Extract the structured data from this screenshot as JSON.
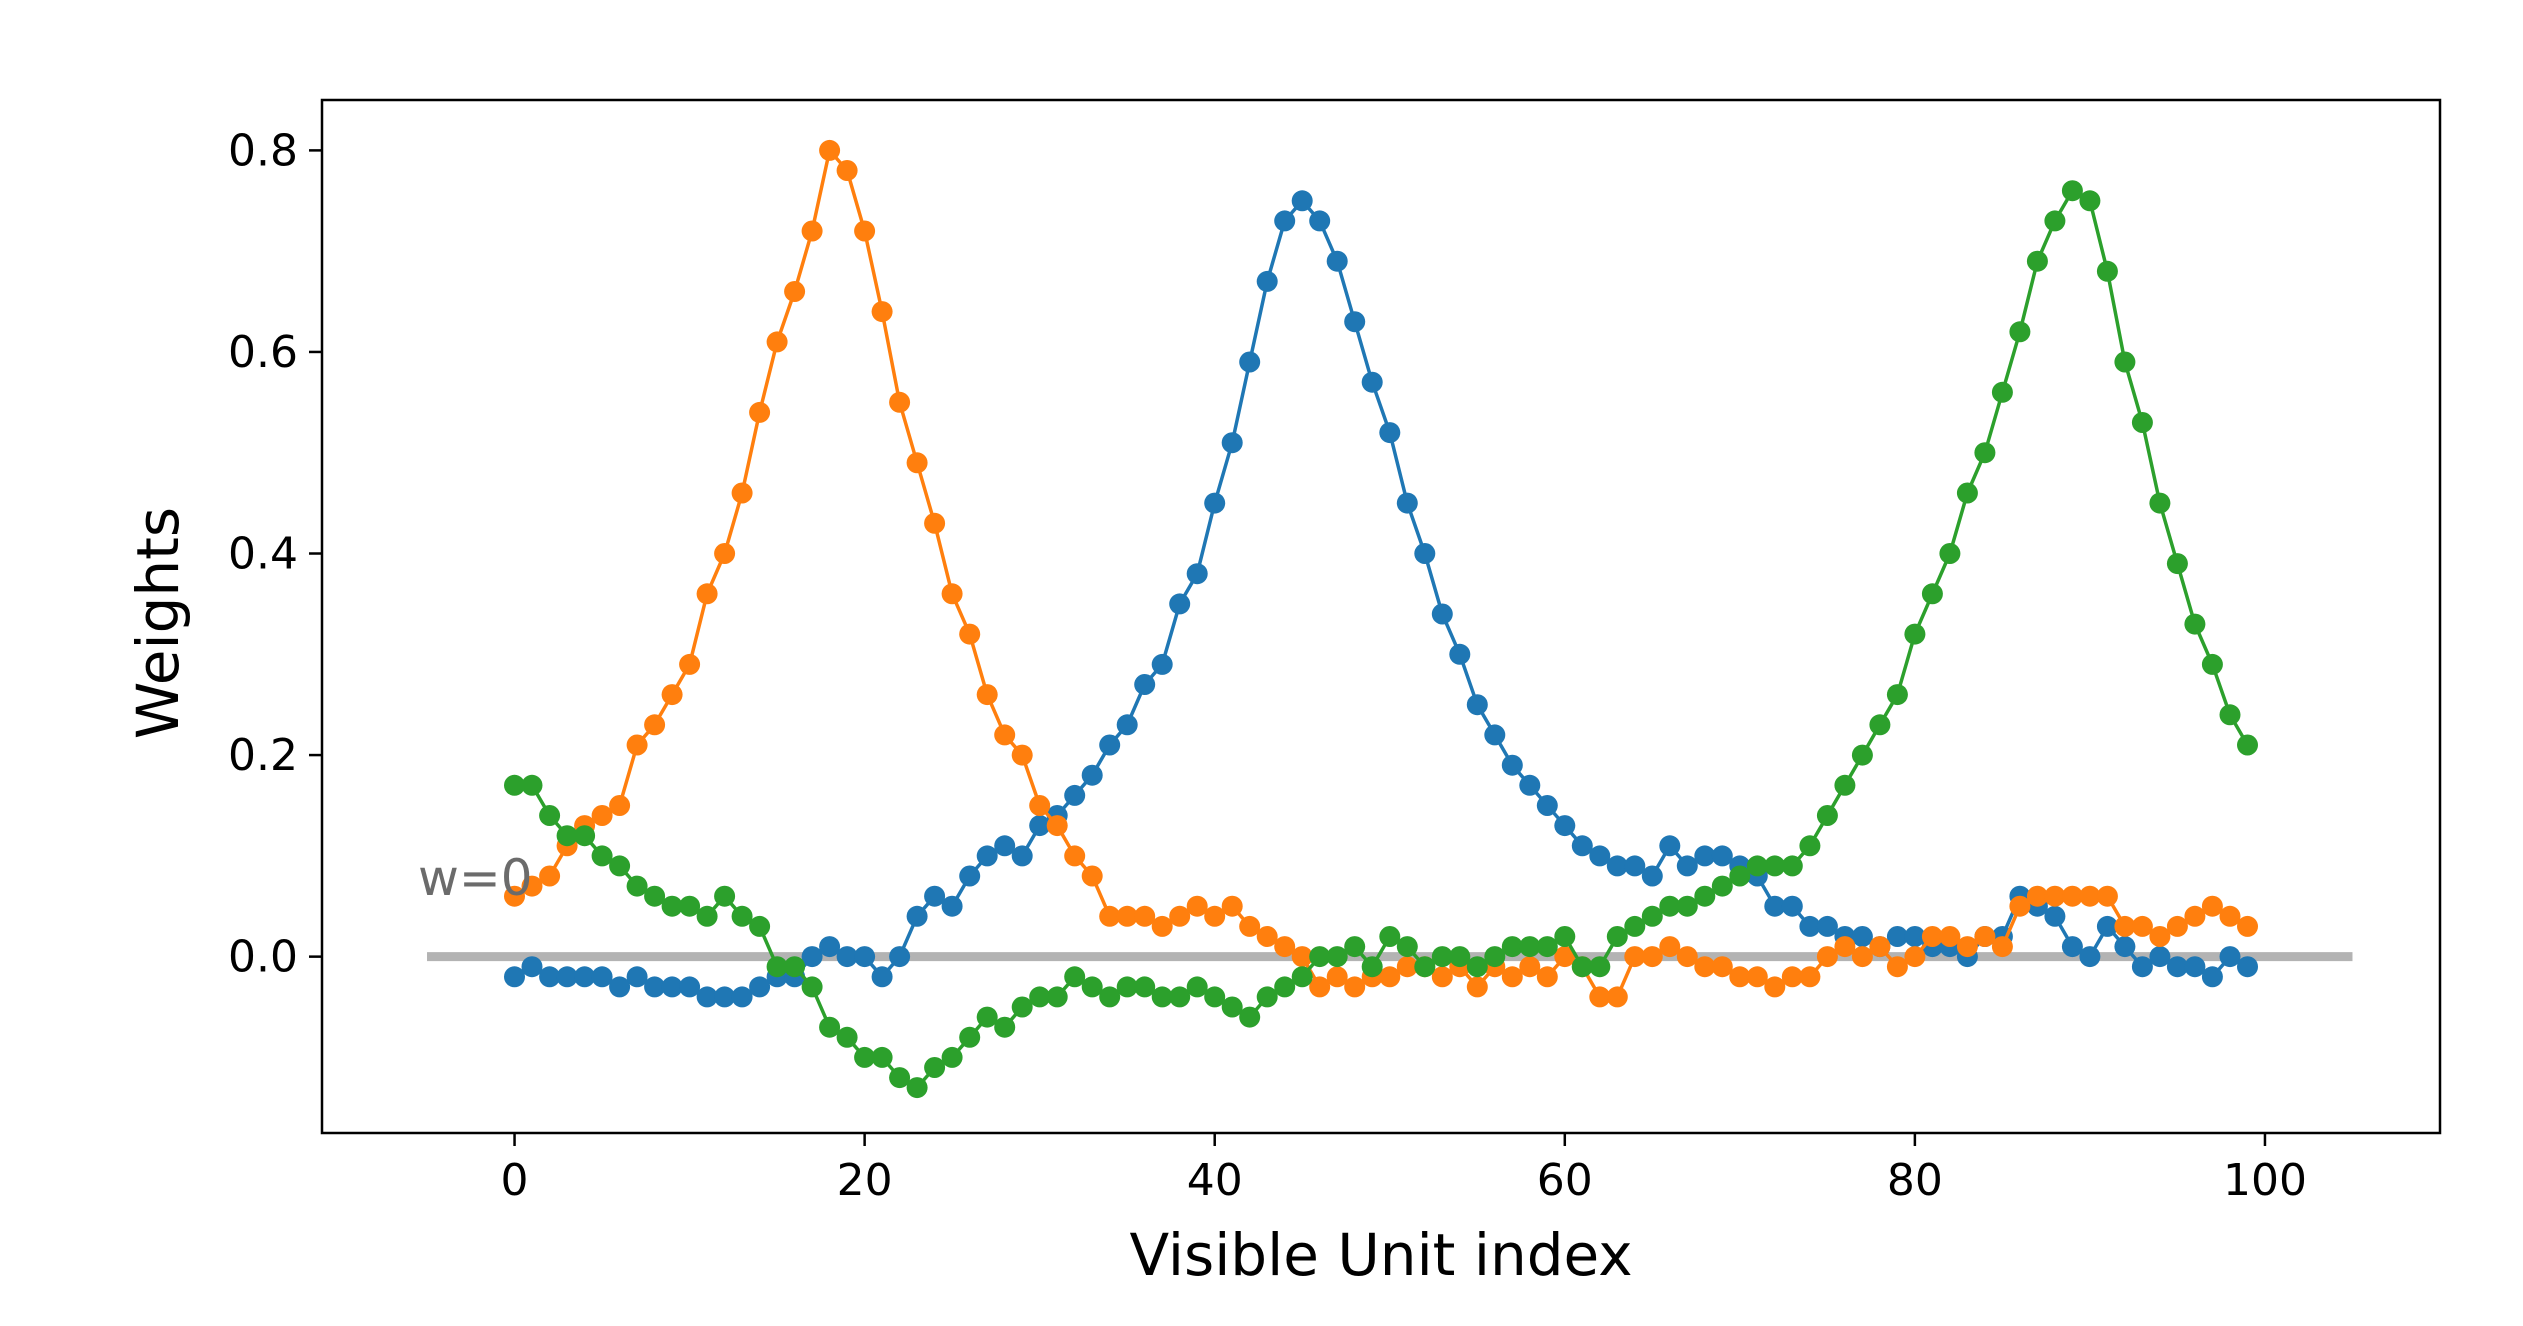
{
  "chart_data": {
    "type": "line",
    "title": "",
    "xlabel": "Visible Unit index",
    "ylabel": "Weights",
    "xlim": [
      -11,
      110
    ],
    "ylim": [
      -0.175,
      0.85
    ],
    "xticks": [
      0,
      20,
      40,
      60,
      80,
      100
    ],
    "yticks": [
      0.0,
      0.2,
      0.4,
      0.6,
      0.8
    ],
    "ytick_labels": [
      "0.0",
      "0.2",
      "0.4",
      "0.6",
      "0.8"
    ],
    "grid": false,
    "legend": "none",
    "reference_line": {
      "y": 0,
      "x_range": [
        -5,
        105
      ],
      "color": "#b3b3b3",
      "label": "w=0"
    },
    "x": [
      0,
      1,
      2,
      3,
      4,
      5,
      6,
      7,
      8,
      9,
      10,
      11,
      12,
      13,
      14,
      15,
      16,
      17,
      18,
      19,
      20,
      21,
      22,
      23,
      24,
      25,
      26,
      27,
      28,
      29,
      30,
      31,
      32,
      33,
      34,
      35,
      36,
      37,
      38,
      39,
      40,
      41,
      42,
      43,
      44,
      45,
      46,
      47,
      48,
      49,
      50,
      51,
      52,
      53,
      54,
      55,
      56,
      57,
      58,
      59,
      60,
      61,
      62,
      63,
      64,
      65,
      66,
      67,
      68,
      69,
      70,
      71,
      72,
      73,
      74,
      75,
      76,
      77,
      78,
      79,
      80,
      81,
      82,
      83,
      84,
      85,
      86,
      87,
      88,
      89,
      90,
      91,
      92,
      93,
      94,
      95,
      96,
      97,
      98,
      99
    ],
    "series": [
      {
        "color": "#1f77b4",
        "values": [
          -0.02,
          -0.01,
          -0.02,
          -0.02,
          -0.02,
          -0.02,
          -0.03,
          -0.02,
          -0.03,
          -0.03,
          -0.03,
          -0.04,
          -0.04,
          -0.04,
          -0.03,
          -0.02,
          -0.02,
          0.0,
          0.01,
          0.0,
          0.0,
          -0.02,
          0.0,
          0.04,
          0.06,
          0.05,
          0.08,
          0.1,
          0.11,
          0.1,
          0.13,
          0.14,
          0.16,
          0.18,
          0.21,
          0.23,
          0.27,
          0.29,
          0.35,
          0.38,
          0.45,
          0.51,
          0.59,
          0.67,
          0.73,
          0.75,
          0.73,
          0.69,
          0.63,
          0.57,
          0.52,
          0.45,
          0.4,
          0.34,
          0.3,
          0.25,
          0.22,
          0.19,
          0.17,
          0.15,
          0.13,
          0.11,
          0.1,
          0.09,
          0.09,
          0.08,
          0.11,
          0.09,
          0.1,
          0.1,
          0.09,
          0.08,
          0.05,
          0.05,
          0.03,
          0.03,
          0.02,
          0.02,
          0.01,
          0.02,
          0.02,
          0.01,
          0.01,
          0.0,
          0.02,
          0.02,
          0.06,
          0.05,
          0.04,
          0.01,
          0.0,
          0.03,
          0.01,
          -0.01,
          0.0,
          -0.01,
          -0.01,
          -0.02,
          0.0,
          -0.01
        ]
      },
      {
        "color": "#ff7f0e",
        "values": [
          0.06,
          0.07,
          0.08,
          0.11,
          0.13,
          0.14,
          0.15,
          0.21,
          0.23,
          0.26,
          0.29,
          0.36,
          0.4,
          0.46,
          0.54,
          0.61,
          0.66,
          0.72,
          0.8,
          0.78,
          0.72,
          0.64,
          0.55,
          0.49,
          0.43,
          0.36,
          0.32,
          0.26,
          0.22,
          0.2,
          0.15,
          0.13,
          0.1,
          0.08,
          0.04,
          0.04,
          0.04,
          0.03,
          0.04,
          0.05,
          0.04,
          0.05,
          0.03,
          0.02,
          0.01,
          0.0,
          -0.03,
          -0.02,
          -0.03,
          -0.02,
          -0.02,
          -0.01,
          -0.01,
          -0.02,
          -0.01,
          -0.03,
          -0.01,
          -0.02,
          -0.01,
          -0.02,
          0.0,
          -0.01,
          -0.04,
          -0.04,
          0.0,
          0.0,
          0.01,
          0.0,
          -0.01,
          -0.01,
          -0.02,
          -0.02,
          -0.03,
          -0.02,
          -0.02,
          0.0,
          0.01,
          0.0,
          0.01,
          -0.01,
          0.0,
          0.02,
          0.02,
          0.01,
          0.02,
          0.01,
          0.05,
          0.06,
          0.06,
          0.06,
          0.06,
          0.06,
          0.03,
          0.03,
          0.02,
          0.03,
          0.04,
          0.05,
          0.04,
          0.03
        ]
      },
      {
        "color": "#2ca02c",
        "values": [
          0.17,
          0.17,
          0.14,
          0.12,
          0.12,
          0.1,
          0.09,
          0.07,
          0.06,
          0.05,
          0.05,
          0.04,
          0.06,
          0.04,
          0.03,
          -0.01,
          -0.01,
          -0.03,
          -0.07,
          -0.08,
          -0.1,
          -0.1,
          -0.12,
          -0.13,
          -0.11,
          -0.1,
          -0.08,
          -0.06,
          -0.07,
          -0.05,
          -0.04,
          -0.04,
          -0.02,
          -0.03,
          -0.04,
          -0.03,
          -0.03,
          -0.04,
          -0.04,
          -0.03,
          -0.04,
          -0.05,
          -0.06,
          -0.04,
          -0.03,
          -0.02,
          0.0,
          0.0,
          0.01,
          -0.01,
          0.02,
          0.01,
          -0.01,
          0.0,
          0.0,
          -0.01,
          0.0,
          0.01,
          0.01,
          0.01,
          0.02,
          -0.01,
          -0.01,
          0.02,
          0.03,
          0.04,
          0.05,
          0.05,
          0.06,
          0.07,
          0.08,
          0.09,
          0.09,
          0.09,
          0.11,
          0.14,
          0.17,
          0.2,
          0.23,
          0.26,
          0.32,
          0.36,
          0.4,
          0.46,
          0.5,
          0.56,
          0.62,
          0.69,
          0.73,
          0.76,
          0.75,
          0.68,
          0.59,
          0.53,
          0.45,
          0.39,
          0.33,
          0.29,
          0.24,
          0.21
        ]
      }
    ]
  }
}
